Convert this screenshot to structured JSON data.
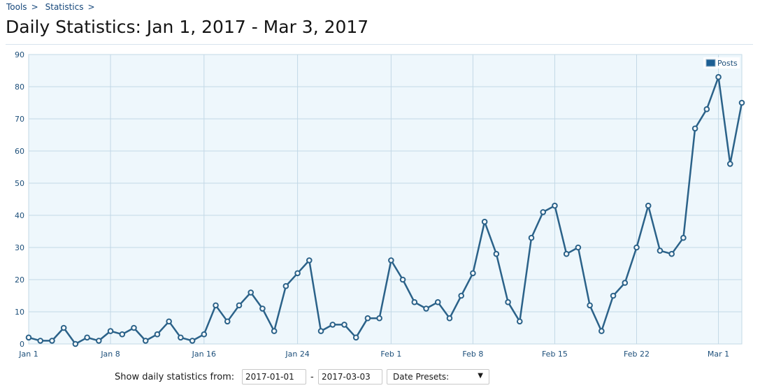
{
  "breadcrumb": [
    {
      "label": "Tools"
    },
    {
      "label": "Statistics"
    }
  ],
  "breadcrumb_separator": ">",
  "title": "Daily Statistics: Jan 1, 2017 - Mar 3, 2017",
  "controls": {
    "label": "Show daily statistics from:",
    "start_date": "2017-01-01",
    "separator": "-",
    "end_date": "2017-03-03",
    "presets_label": "Date Presets:",
    "arrow": "▼"
  },
  "colors": {
    "line": "#2b6289",
    "plot_bg": "#eef7fc",
    "grid": "#c3d8e6",
    "axis_text": "#1d4f7a",
    "legend_swatch": "#1c5f94"
  },
  "chart_data": {
    "type": "line",
    "x_start": "2017-01-01",
    "x_end": "2017-03-03",
    "x_ticks": [
      "Jan 1",
      "Jan 8",
      "Jan 16",
      "Jan 24",
      "Feb 1",
      "Feb 8",
      "Feb 15",
      "Feb 22",
      "Mar 1"
    ],
    "ylim": [
      0,
      90
    ],
    "y_ticks": [
      0,
      10,
      20,
      30,
      40,
      50,
      60,
      70,
      80,
      90
    ],
    "grid": true,
    "legend_position": "top-right",
    "series": [
      {
        "name": "Posts",
        "values": [
          2,
          1,
          1,
          5,
          0,
          2,
          1,
          4,
          3,
          5,
          1,
          3,
          7,
          2,
          1,
          3,
          12,
          7,
          12,
          16,
          11,
          4,
          18,
          22,
          26,
          4,
          6,
          6,
          2,
          8,
          8,
          26,
          20,
          13,
          11,
          13,
          8,
          15,
          22,
          38,
          28,
          13,
          7,
          33,
          41,
          43,
          28,
          30,
          12,
          4,
          15,
          19,
          30,
          43,
          29,
          28,
          33,
          67,
          73,
          83,
          56,
          75
        ]
      }
    ]
  }
}
